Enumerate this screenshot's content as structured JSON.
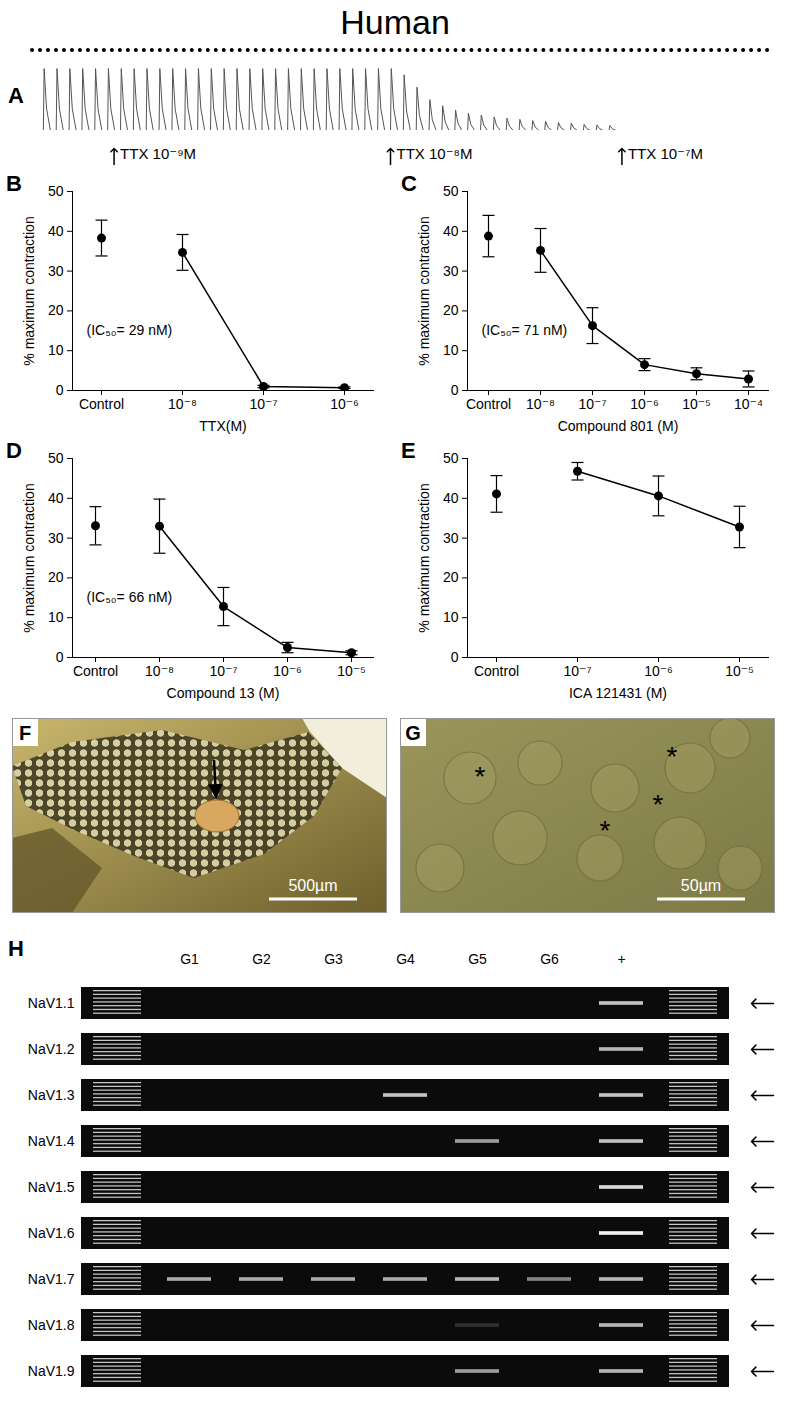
{
  "title": "Human",
  "chart_data": [
    {
      "panel": "A",
      "type": "trace",
      "color": "#555555",
      "values": [
        1,
        1,
        1,
        1,
        1,
        1,
        1,
        1,
        1,
        1,
        1,
        1,
        1,
        1,
        1,
        1,
        1,
        1,
        1,
        1,
        1,
        1,
        1,
        1,
        1,
        1,
        1,
        1,
        0.9,
        0.7,
        0.5,
        0.4,
        0.33,
        0.28,
        0.25,
        0.22,
        0.2,
        0.18,
        0.16,
        0.15,
        0.13,
        0.12,
        0.1,
        0.09,
        0.08,
        0,
        0,
        0,
        0,
        0,
        0,
        0,
        0,
        0,
        0
      ],
      "xlim": [
        -1,
        55
      ],
      "ylim": [
        0,
        1.05
      ],
      "tick_labels": false,
      "annotations": [
        {
          "x": 5.5,
          "text": "TTX 10⁻⁹M"
        },
        {
          "x": 27,
          "text": "TTX 10⁻⁸M"
        },
        {
          "x": 45,
          "text": "TTX 10⁻⁷M"
        }
      ]
    },
    {
      "panel": "B",
      "type": "line",
      "categories": [
        "Control",
        "10⁻⁸",
        "10⁻⁷",
        "10⁻⁶"
      ],
      "series": [
        {
          "values": [
            38.3,
            null,
            null,
            null
          ],
          "errors": [
            4.5,
            null,
            null,
            null
          ],
          "color": "#000000",
          "marker": "circle",
          "line_style": "none"
        },
        {
          "values": [
            null,
            34.7,
            1.0,
            0.7
          ],
          "errors": [
            null,
            4.5,
            0.3,
            0.2
          ],
          "color": "#000000",
          "marker": "circle",
          "line_style": "solid"
        }
      ],
      "xlabel": "TTX(M)",
      "ylabel": "% maximum contraction",
      "ylim": [
        0,
        50
      ],
      "yticks": [
        0,
        10,
        20,
        30,
        40,
        50
      ],
      "annotations": [
        "(IC₅₀= 29 nM)"
      ]
    },
    {
      "panel": "C",
      "type": "line",
      "categories": [
        "Control",
        "10⁻⁸",
        "10⁻⁷",
        "10⁻⁶",
        "10⁻⁵",
        "10⁻⁴"
      ],
      "series": [
        {
          "values": [
            38.8,
            null,
            null,
            null,
            null,
            null
          ],
          "errors": [
            5.2,
            null,
            null,
            null,
            null,
            null
          ],
          "color": "#000000",
          "marker": "circle",
          "line_style": "none"
        },
        {
          "values": [
            null,
            35.2,
            16.3,
            6.5,
            4.2,
            2.9
          ],
          "errors": [
            null,
            5.5,
            4.5,
            1.5,
            1.5,
            2.0
          ],
          "color": "#000000",
          "marker": "circle",
          "line_style": "solid"
        }
      ],
      "xlabel": "Compound 801 (M)",
      "ylabel": "% maximum contraction",
      "ylim": [
        0,
        50
      ],
      "yticks": [
        0,
        10,
        20,
        30,
        40,
        50
      ],
      "annotations": [
        "(IC₅₀= 71 nM)"
      ]
    },
    {
      "panel": "D",
      "type": "line",
      "categories": [
        "Control",
        "10⁻⁸",
        "10⁻⁷",
        "10⁻⁶",
        "10⁻⁵"
      ],
      "series": [
        {
          "values": [
            33.1,
            null,
            null,
            null,
            null
          ],
          "errors": [
            4.8,
            null,
            null,
            null,
            null
          ],
          "color": "#000000",
          "marker": "circle",
          "line_style": "none"
        },
        {
          "values": [
            null,
            33.0,
            12.8,
            2.5,
            1.2
          ],
          "errors": [
            null,
            6.8,
            4.8,
            1.3,
            0.5
          ],
          "color": "#000000",
          "marker": "circle",
          "line_style": "solid"
        }
      ],
      "xlabel": "Compound 13 (M)",
      "ylabel": "% maximum contraction",
      "ylim": [
        0,
        50
      ],
      "yticks": [
        0,
        10,
        20,
        30,
        40,
        50
      ],
      "annotations": [
        "(IC₅₀= 66 nM)"
      ]
    },
    {
      "panel": "E",
      "type": "line",
      "categories": [
        "Control",
        "10⁻⁷",
        "10⁻⁶",
        "10⁻⁵"
      ],
      "series": [
        {
          "values": [
            41.1,
            null,
            null,
            null
          ],
          "errors": [
            4.6,
            null,
            null,
            null
          ],
          "color": "#000000",
          "marker": "circle",
          "line_style": "none"
        },
        {
          "values": [
            null,
            46.8,
            40.6,
            32.8
          ],
          "errors": [
            null,
            2.2,
            5.0,
            5.2
          ],
          "color": "#000000",
          "marker": "circle",
          "line_style": "solid"
        }
      ],
      "xlabel": "ICA 121431 (M)",
      "ylabel": "% maximum contraction",
      "ylim": [
        0,
        50
      ],
      "yticks": [
        0,
        10,
        20,
        30,
        40,
        50
      ]
    },
    {
      "panel": "H",
      "type": "gel",
      "categories": [
        "G1",
        "G2",
        "G3",
        "G4",
        "G5",
        "G6",
        "+"
      ],
      "rows": [
        "NaV1.1",
        "NaV1.2",
        "NaV1.3",
        "NaV1.4",
        "NaV1.5",
        "NaV1.6",
        "NaV1.7",
        "NaV1.8",
        "NaV1.9"
      ],
      "values": [
        [
          0,
          0,
          0,
          0,
          0,
          0,
          0.75
        ],
        [
          0,
          0,
          0,
          0,
          0,
          0,
          0.7
        ],
        [
          0,
          0,
          0,
          0.75,
          0,
          0,
          0.75
        ],
        [
          0,
          0,
          0,
          0,
          0.6,
          0,
          0.75
        ],
        [
          0,
          0,
          0,
          0,
          0,
          0,
          0.85
        ],
        [
          0,
          0,
          0,
          0,
          0,
          0,
          0.95
        ],
        [
          0.65,
          0.65,
          0.65,
          0.65,
          0.7,
          0.5,
          0.7
        ],
        [
          0,
          0,
          0,
          0,
          0.15,
          0,
          0.7
        ],
        [
          0,
          0,
          0,
          0,
          0.6,
          0,
          0.7
        ]
      ]
    }
  ],
  "images": [
    {
      "panel": "F",
      "scale_bar": "500µm"
    },
    {
      "panel": "G",
      "scale_bar": "50µm",
      "annotations": [
        "*",
        "*",
        "*",
        "*"
      ]
    }
  ]
}
